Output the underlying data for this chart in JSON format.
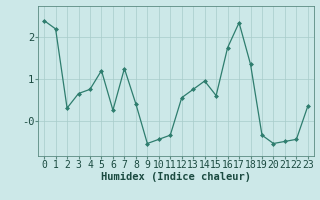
{
  "x": [
    0,
    1,
    2,
    3,
    4,
    5,
    6,
    7,
    8,
    9,
    10,
    11,
    12,
    13,
    14,
    15,
    16,
    17,
    18,
    19,
    20,
    21,
    22,
    23
  ],
  "y": [
    2.4,
    2.2,
    0.3,
    0.65,
    0.75,
    1.2,
    0.25,
    1.25,
    0.4,
    -0.55,
    -0.45,
    -0.35,
    0.55,
    0.75,
    0.95,
    0.6,
    1.75,
    2.35,
    1.35,
    -0.35,
    -0.55,
    -0.5,
    -0.45,
    0.35
  ],
  "line_color": "#2e7d6e",
  "marker": "D",
  "marker_size": 2.0,
  "bg_color": "#cce8e8",
  "grid_color": "#a8ccca",
  "xlabel": "Humidex (Indice chaleur)",
  "ylim": [
    -0.85,
    2.75
  ],
  "xlim": [
    -0.5,
    23.5
  ],
  "xlabel_fontsize": 7.5,
  "tick_fontsize": 7
}
